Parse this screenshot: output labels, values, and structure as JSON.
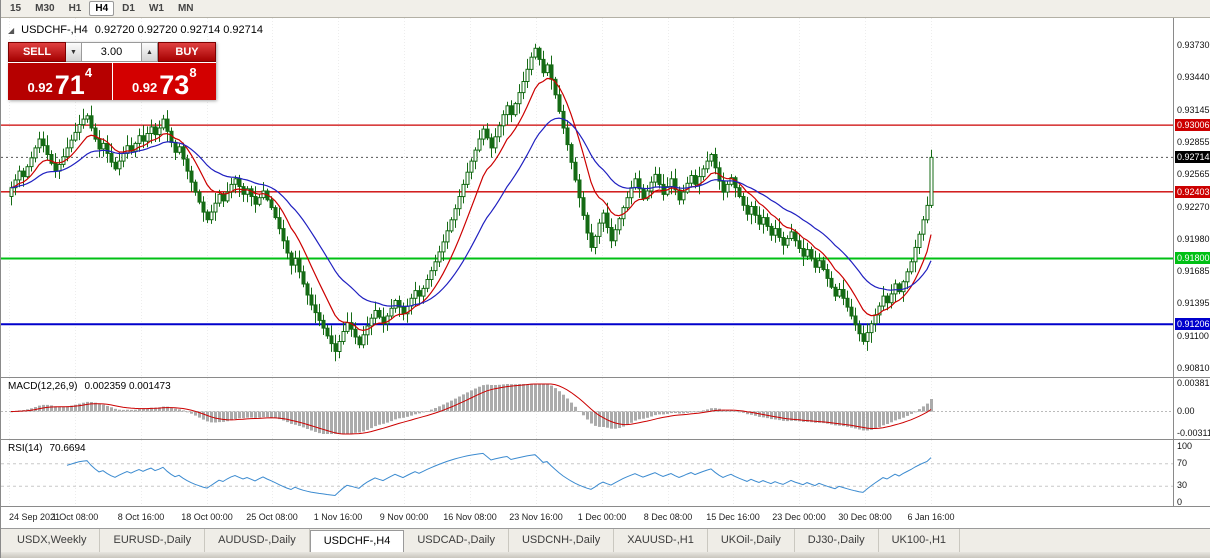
{
  "toolbar": {
    "timeframes": [
      "15",
      "M30",
      "H1",
      "H4",
      "D1",
      "W1",
      "MN"
    ],
    "active": "H4"
  },
  "chart": {
    "symbol": "USDCHF-,H4",
    "ohlc": "0.92720 0.92720 0.92714 0.92714",
    "price_axis": [
      "0.93730",
      "0.93440",
      "0.93145",
      "0.92855",
      "0.92565",
      "0.92270",
      "0.91980",
      "0.91685",
      "0.91395",
      "0.91100",
      "0.90810"
    ],
    "hlines": [
      {
        "label": "0.93006",
        "value": 0.93006,
        "color": "#CC0000",
        "width": 1.3
      },
      {
        "label": "0.92403",
        "value": 0.92403,
        "color": "#CC0000",
        "width": 1.3
      },
      {
        "label": "0.91800",
        "value": 0.918,
        "color": "#00C014",
        "width": 2
      },
      {
        "label": "0.91206",
        "value": 0.91206,
        "color": "#0000CC",
        "width": 2
      }
    ],
    "current_price": {
      "label": "0.92714",
      "value": 0.92714,
      "color": "#000000"
    }
  },
  "trade_panel": {
    "sell_label": "SELL",
    "buy_label": "BUY",
    "volume": "3.00",
    "spinner_down": "▼",
    "spinner_up": "▲",
    "sell_price": {
      "prefix": "0.92",
      "big": "71",
      "sup": "4"
    },
    "buy_price": {
      "prefix": "0.92",
      "big": "73",
      "sup": "8"
    }
  },
  "macd": {
    "name": "MACD(12,26,9)",
    "values": "0.002359 0.001473",
    "max": 0.00381,
    "min": -0.00311,
    "axis": [
      {
        "label": "0.00381",
        "value": 0.00381
      },
      {
        "label": "0.00",
        "value": 0
      },
      {
        "label": "-0.00311",
        "value": -0.00311
      }
    ]
  },
  "rsi": {
    "name": "RSI(14)",
    "value": "70.6694",
    "levels": [
      70,
      30
    ],
    "axis": [
      {
        "label": "100",
        "value": 100
      },
      {
        "label": "70",
        "value": 70
      },
      {
        "label": "30",
        "value": 30
      },
      {
        "label": "0",
        "value": 0
      }
    ]
  },
  "time_axis": [
    "24 Sep 2021",
    "1 Oct 08:00",
    "8 Oct 16:00",
    "18 Oct 00:00",
    "25 Oct 08:00",
    "1 Nov 16:00",
    "9 Nov 00:00",
    "16 Nov 08:00",
    "23 Nov 16:00",
    "1 Dec 00:00",
    "8 Dec 08:00",
    "15 Dec 16:00",
    "23 Dec 00:00",
    "30 Dec 08:00",
    "6 Jan 16:00"
  ],
  "tabs": {
    "items": [
      "USDX,Weekly",
      "EURUSD-,Daily",
      "AUDUSD-,Daily",
      "USDCHF-,H4",
      "USDCAD-,Daily",
      "USDCNH-,Daily",
      "XAUUSD-,H1",
      "UKOil-,Daily",
      "DJ30-,Daily",
      "UK100-,H1"
    ],
    "active": "USDCHF-,H4"
  },
  "chart_data": {
    "type": "candlestick",
    "title": "USDCHF H4",
    "ylim": [
      0.9081,
      0.9373
    ],
    "candle_color": "#156b15",
    "bull_fill": "#ffffff",
    "ma_fast": {
      "period": 10,
      "color": "#CC0000"
    },
    "ma_slow": {
      "period": 25,
      "color": "#2020C0"
    },
    "macd_params": [
      12,
      26,
      9
    ],
    "rsi_period": 14,
    "closes": [
      0.9244,
      0.9251,
      0.9259,
      0.9254,
      0.9263,
      0.9271,
      0.928,
      0.9288,
      0.9282,
      0.9274,
      0.9266,
      0.9259,
      0.9265,
      0.9272,
      0.928,
      0.9287,
      0.9294,
      0.9301,
      0.9306,
      0.9309,
      0.9298,
      0.9288,
      0.9279,
      0.9284,
      0.9275,
      0.9267,
      0.9261,
      0.9268,
      0.9275,
      0.9282,
      0.9277,
      0.9284,
      0.9291,
      0.9286,
      0.9293,
      0.9299,
      0.9292,
      0.9298,
      0.9306,
      0.9295,
      0.9285,
      0.9276,
      0.9281,
      0.927,
      0.9259,
      0.9249,
      0.924,
      0.9231,
      0.9222,
      0.9215,
      0.9222,
      0.923,
      0.9238,
      0.9232,
      0.924,
      0.9247,
      0.9252,
      0.9245,
      0.9238,
      0.9243,
      0.9236,
      0.9229,
      0.9235,
      0.9241,
      0.9233,
      0.9226,
      0.9217,
      0.9207,
      0.9196,
      0.9185,
      0.9174,
      0.918,
      0.9168,
      0.9157,
      0.9147,
      0.9138,
      0.9131,
      0.9124,
      0.9117,
      0.911,
      0.9103,
      0.9096,
      0.9105,
      0.9114,
      0.9122,
      0.9116,
      0.9109,
      0.9102,
      0.9111,
      0.9119,
      0.9126,
      0.9133,
      0.9127,
      0.9121,
      0.9128,
      0.9135,
      0.9142,
      0.9136,
      0.913,
      0.9137,
      0.9144,
      0.9151,
      0.9146,
      0.9153,
      0.9161,
      0.9169,
      0.9177,
      0.9186,
      0.9195,
      0.9205,
      0.9215,
      0.9225,
      0.9236,
      0.9247,
      0.9258,
      0.9268,
      0.9278,
      0.9288,
      0.9297,
      0.9289,
      0.928,
      0.929,
      0.93,
      0.931,
      0.9318,
      0.931,
      0.932,
      0.933,
      0.934,
      0.9351,
      0.9362,
      0.937,
      0.936,
      0.9348,
      0.9355,
      0.9342,
      0.9328,
      0.9313,
      0.9298,
      0.9283,
      0.9267,
      0.9251,
      0.9235,
      0.9219,
      0.9203,
      0.919,
      0.92,
      0.9212,
      0.9221,
      0.9208,
      0.9196,
      0.9206,
      0.9216,
      0.9226,
      0.9235,
      0.9244,
      0.9252,
      0.9243,
      0.9234,
      0.9241,
      0.9249,
      0.9256,
      0.9247,
      0.9238,
      0.9245,
      0.9252,
      0.9242,
      0.9233,
      0.924,
      0.9248,
      0.9255,
      0.9247,
      0.9254,
      0.9261,
      0.9268,
      0.9274,
      0.9262,
      0.925,
      0.924,
      0.9247,
      0.9253,
      0.9244,
      0.9236,
      0.9228,
      0.922,
      0.9227,
      0.9219,
      0.9211,
      0.9217,
      0.9209,
      0.9201,
      0.9207,
      0.9199,
      0.9192,
      0.9198,
      0.9204,
      0.9196,
      0.9189,
      0.9182,
      0.9188,
      0.918,
      0.9172,
      0.9178,
      0.917,
      0.9162,
      0.9154,
      0.9146,
      0.9152,
      0.9144,
      0.9136,
      0.9128,
      0.912,
      0.9112,
      0.9105,
      0.9113,
      0.9121,
      0.9129,
      0.9137,
      0.9146,
      0.914,
      0.9148,
      0.9157,
      0.915,
      0.9159,
      0.9168,
      0.9177,
      0.919,
      0.9202,
      0.9215,
      0.9228,
      0.92714
    ]
  }
}
